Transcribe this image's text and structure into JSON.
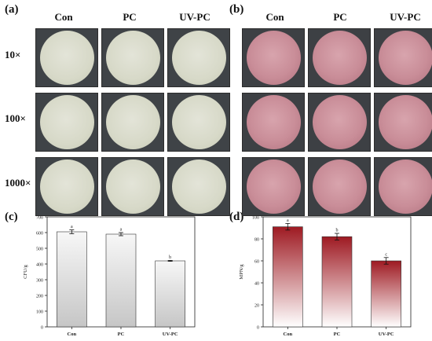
{
  "panels": {
    "a": "(a)",
    "b": "(b)",
    "c": "(c)",
    "d": "(d)"
  },
  "photo_columns": [
    "Con",
    "PC",
    "UV-PC"
  ],
  "photo_rows": [
    "10×",
    "100×",
    "1000×"
  ],
  "colors": {
    "bar_c_top": "#f7f7f7",
    "bar_c_bottom": "#c6c6c6",
    "bar_d_top": "#9e1a22",
    "bar_d_bottom": "#ffffff"
  },
  "chart_data": [
    {
      "type": "bar",
      "panel": "(c)",
      "categories": [
        "Con",
        "PC",
        "UV-PC"
      ],
      "values": [
        605,
        590,
        420
      ],
      "errors": [
        12,
        10,
        3
      ],
      "letters": [
        "a",
        "a",
        "b"
      ],
      "ylabel": "CFU/g",
      "ylim": [
        0,
        700
      ],
      "yticks": [
        0,
        100,
        200,
        300,
        400,
        500,
        600,
        700
      ]
    },
    {
      "type": "bar",
      "panel": "(d)",
      "categories": [
        "Con",
        "PC",
        "UV-PC"
      ],
      "values": [
        91,
        82,
        60
      ],
      "errors": [
        3,
        3,
        3
      ],
      "letters": [
        "a",
        "b",
        "c"
      ],
      "ylabel": "MPN/g",
      "ylim": [
        0,
        100
      ],
      "yticks": [
        0,
        20,
        40,
        60,
        80,
        100
      ]
    }
  ]
}
